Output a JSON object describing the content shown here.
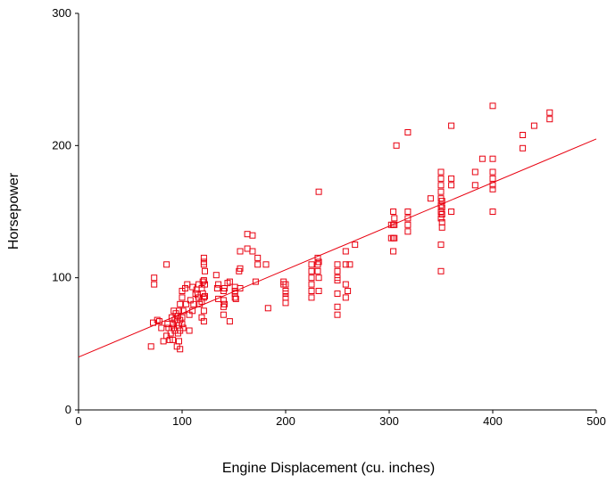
{
  "chart_data": {
    "type": "scatter",
    "title": "",
    "xlabel": "Engine Displacement (cu. inches)",
    "ylabel": "Horsepower",
    "xlim": [
      0,
      500
    ],
    "ylim": [
      0,
      300
    ],
    "xticks": [
      "0",
      "100",
      "200",
      "300",
      "400",
      "500"
    ],
    "yticks": [
      "0",
      "100",
      "200",
      "300"
    ],
    "grid": false,
    "legend": "none",
    "marker_color": "#e8000f",
    "fit_line": {
      "type": "linear",
      "x": [
        0,
        500
      ],
      "y": [
        40,
        205
      ]
    },
    "points": [
      [
        70,
        48
      ],
      [
        72,
        66
      ],
      [
        73,
        95
      ],
      [
        73,
        100
      ],
      [
        76,
        68
      ],
      [
        78,
        67
      ],
      [
        80,
        62
      ],
      [
        82,
        52
      ],
      [
        85,
        56
      ],
      [
        85,
        110
      ],
      [
        86,
        65
      ],
      [
        87,
        62
      ],
      [
        88,
        53
      ],
      [
        89,
        58
      ],
      [
        90,
        62
      ],
      [
        90,
        70
      ],
      [
        91,
        53
      ],
      [
        91,
        65
      ],
      [
        92,
        62
      ],
      [
        92,
        75
      ],
      [
        93,
        60
      ],
      [
        93,
        68
      ],
      [
        94,
        73
      ],
      [
        95,
        66
      ],
      [
        95,
        48
      ],
      [
        96,
        58
      ],
      [
        96,
        71
      ],
      [
        97,
        52
      ],
      [
        97,
        64
      ],
      [
        97,
        75
      ],
      [
        98,
        46
      ],
      [
        98,
        60
      ],
      [
        98,
        68
      ],
      [
        98,
        80
      ],
      [
        100,
        70
      ],
      [
        100,
        65
      ],
      [
        100,
        85
      ],
      [
        100,
        90
      ],
      [
        101,
        62
      ],
      [
        101,
        75
      ],
      [
        103,
        92
      ],
      [
        104,
        80
      ],
      [
        105,
        95
      ],
      [
        107,
        60
      ],
      [
        107,
        72
      ],
      [
        108,
        83
      ],
      [
        110,
        93
      ],
      [
        110,
        75
      ],
      [
        111,
        80
      ],
      [
        113,
        88
      ],
      [
        114,
        91
      ],
      [
        115,
        87
      ],
      [
        116,
        85
      ],
      [
        116,
        95
      ],
      [
        117,
        80
      ],
      [
        119,
        70
      ],
      [
        119,
        82
      ],
      [
        119,
        92
      ],
      [
        120,
        88
      ],
      [
        120,
        97
      ],
      [
        121,
        67
      ],
      [
        121,
        75
      ],
      [
        121,
        85
      ],
      [
        121,
        98
      ],
      [
        121,
        110
      ],
      [
        121,
        112
      ],
      [
        121,
        115
      ],
      [
        122,
        86
      ],
      [
        122,
        105
      ],
      [
        122,
        95
      ],
      [
        133,
        102
      ],
      [
        134,
        92
      ],
      [
        135,
        95
      ],
      [
        135,
        84
      ],
      [
        140,
        90
      ],
      [
        140,
        78
      ],
      [
        140,
        72
      ],
      [
        140,
        83
      ],
      [
        141,
        92
      ],
      [
        141,
        80
      ],
      [
        144,
        96
      ],
      [
        146,
        97
      ],
      [
        146,
        67
      ],
      [
        151,
        88
      ],
      [
        151,
        90
      ],
      [
        151,
        85
      ],
      [
        151,
        93
      ],
      [
        152,
        84
      ],
      [
        155,
        105
      ],
      [
        156,
        92
      ],
      [
        156,
        107
      ],
      [
        156,
        120
      ],
      [
        163,
        122
      ],
      [
        163,
        133
      ],
      [
        168,
        132
      ],
      [
        168,
        120
      ],
      [
        171,
        97
      ],
      [
        173,
        110
      ],
      [
        173,
        115
      ],
      [
        181,
        110
      ],
      [
        183,
        77
      ],
      [
        198,
        95
      ],
      [
        198,
        97
      ],
      [
        200,
        81
      ],
      [
        200,
        85
      ],
      [
        200,
        88
      ],
      [
        200,
        90
      ],
      [
        200,
        95
      ],
      [
        225,
        95
      ],
      [
        225,
        100
      ],
      [
        225,
        105
      ],
      [
        225,
        110
      ],
      [
        225,
        85
      ],
      [
        225,
        90
      ],
      [
        231,
        105
      ],
      [
        231,
        110
      ],
      [
        231,
        115
      ],
      [
        232,
        90
      ],
      [
        232,
        100
      ],
      [
        232,
        112
      ],
      [
        232,
        165
      ],
      [
        250,
        72
      ],
      [
        250,
        78
      ],
      [
        250,
        88
      ],
      [
        250,
        98
      ],
      [
        250,
        100
      ],
      [
        250,
        105
      ],
      [
        250,
        110
      ],
      [
        258,
        85
      ],
      [
        258,
        95
      ],
      [
        258,
        110
      ],
      [
        258,
        120
      ],
      [
        260,
        90
      ],
      [
        262,
        110
      ],
      [
        267,
        125
      ],
      [
        302,
        130
      ],
      [
        302,
        140
      ],
      [
        304,
        120
      ],
      [
        304,
        130
      ],
      [
        304,
        140
      ],
      [
        304,
        150
      ],
      [
        305,
        130
      ],
      [
        305,
        140
      ],
      [
        305,
        145
      ],
      [
        307,
        200
      ],
      [
        318,
        140
      ],
      [
        318,
        145
      ],
      [
        318,
        150
      ],
      [
        318,
        210
      ],
      [
        318,
        135
      ],
      [
        340,
        160
      ],
      [
        350,
        105
      ],
      [
        350,
        125
      ],
      [
        350,
        145
      ],
      [
        350,
        150
      ],
      [
        350,
        155
      ],
      [
        350,
        160
      ],
      [
        350,
        165
      ],
      [
        350,
        170
      ],
      [
        350,
        175
      ],
      [
        350,
        180
      ],
      [
        351,
        138
      ],
      [
        351,
        142
      ],
      [
        351,
        148
      ],
      [
        351,
        153
      ],
      [
        351,
        158
      ],
      [
        360,
        150
      ],
      [
        360,
        170
      ],
      [
        360,
        175
      ],
      [
        360,
        215
      ],
      [
        383,
        170
      ],
      [
        383,
        180
      ],
      [
        390,
        190
      ],
      [
        400,
        150
      ],
      [
        400,
        167
      ],
      [
        400,
        170
      ],
      [
        400,
        175
      ],
      [
        400,
        180
      ],
      [
        400,
        190
      ],
      [
        400,
        230
      ],
      [
        429,
        198
      ],
      [
        429,
        208
      ],
      [
        440,
        215
      ],
      [
        455,
        220
      ],
      [
        455,
        225
      ]
    ]
  }
}
